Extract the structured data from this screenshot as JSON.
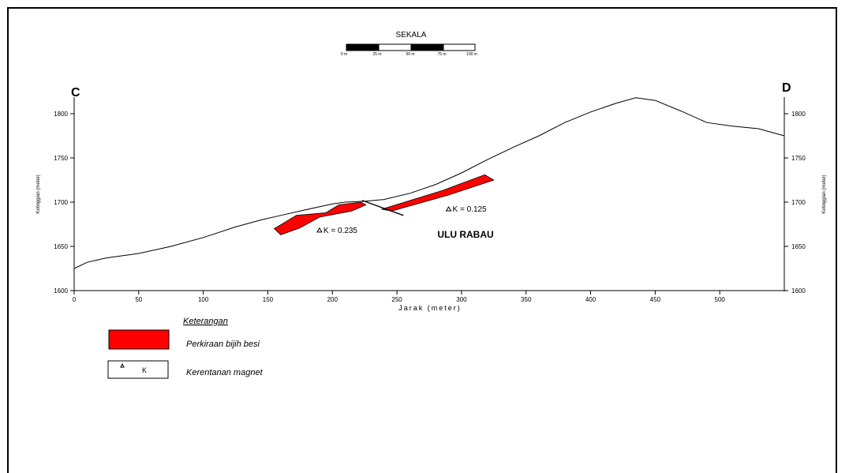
{
  "scale": {
    "title": "SEKALA",
    "labels": [
      "0 m",
      "25 m",
      "50 m",
      "75 m",
      "100 m"
    ]
  },
  "endpoints": {
    "left": "C",
    "right": "D"
  },
  "axes": {
    "ylabel": "Ketinggian (meter)",
    "xlabel": "Jarak (meter)",
    "xlim": [
      0,
      550
    ],
    "ylim": [
      1600,
      1820
    ],
    "xticks": [
      "0",
      "50",
      "100",
      "150",
      "200",
      "250",
      "300",
      "350",
      "400",
      "450",
      "500"
    ],
    "yticks": [
      "1600",
      "1650",
      "1700",
      "1750",
      "1800"
    ]
  },
  "profile": {
    "name": "ULU RABAU",
    "x": [
      0,
      10,
      25,
      50,
      75,
      100,
      125,
      145,
      160,
      175,
      200,
      210,
      225,
      240,
      260,
      280,
      300,
      320,
      340,
      360,
      380,
      400,
      420,
      435,
      450,
      470,
      490,
      510,
      530,
      550
    ],
    "y": [
      1625,
      1632,
      1637,
      1642,
      1650,
      1660,
      1672,
      1680,
      1685,
      1690,
      1698,
      1700,
      1701,
      1703,
      1710,
      1720,
      1733,
      1748,
      1762,
      1775,
      1790,
      1802,
      1812,
      1818,
      1815,
      1803,
      1790,
      1786,
      1783,
      1775
    ]
  },
  "ore_bodies": [
    {
      "points": [
        [
          155,
          1670
        ],
        [
          172,
          1685
        ],
        [
          195,
          1688
        ],
        [
          205,
          1697
        ],
        [
          222,
          1700
        ],
        [
          226,
          1697
        ],
        [
          215,
          1690
        ],
        [
          190,
          1683
        ],
        [
          175,
          1671
        ],
        [
          160,
          1663
        ]
      ]
    },
    {
      "points": [
        [
          238,
          1692
        ],
        [
          285,
          1713
        ],
        [
          318,
          1731
        ],
        [
          325,
          1725
        ],
        [
          290,
          1708
        ],
        [
          246,
          1690
        ]
      ]
    }
  ],
  "fault_line": {
    "points": [
      [
        223,
        1702
      ],
      [
        255,
        1685
      ]
    ]
  },
  "measurements": [
    {
      "label": "K = 0.235",
      "x": 190,
      "y": 1668
    },
    {
      "label": "K = 0.125",
      "x": 290,
      "y": 1692
    }
  ],
  "legend": {
    "title": "Keterangan",
    "ore_label": "Perkiraan bijih besi",
    "symbol_text": "K",
    "symbol_label": "Kerentanan magnet"
  },
  "colors": {
    "ore": "#ff0000",
    "line": "#000000"
  }
}
